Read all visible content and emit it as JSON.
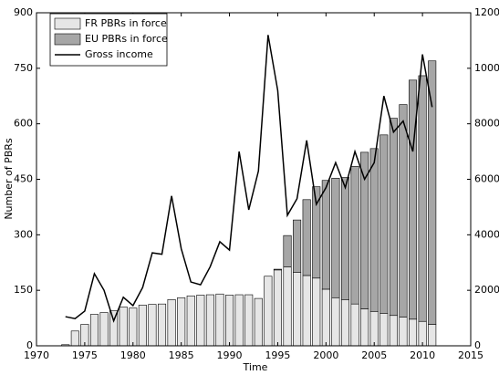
{
  "chart_data": {
    "type": "bar",
    "x_label": "Time",
    "y_label": "Number of PBRs",
    "x": [
      1973,
      1974,
      1975,
      1976,
      1977,
      1978,
      1979,
      1980,
      1981,
      1982,
      1983,
      1984,
      1985,
      1986,
      1987,
      1988,
      1989,
      1990,
      1991,
      1992,
      1993,
      1994,
      1995,
      1996,
      1997,
      1998,
      1999,
      2000,
      2001,
      2002,
      2003,
      2004,
      2005,
      2006,
      2007,
      2008,
      2009,
      2010,
      2011
    ],
    "series": [
      {
        "name": "FR PBRs in force",
        "type": "bar",
        "color": "#e6e6e6",
        "values": [
          3,
          40,
          58,
          85,
          90,
          95,
          105,
          102,
          110,
          112,
          113,
          125,
          130,
          135,
          137,
          138,
          140,
          137,
          138,
          138,
          128,
          188,
          205,
          213,
          198,
          190,
          183,
          153,
          130,
          125,
          113,
          100,
          93,
          88,
          82,
          78,
          72,
          66,
          58
        ]
      },
      {
        "name": "EU PBRs in force",
        "type": "bar",
        "color": "#a6a6a6",
        "values": [
          0,
          0,
          0,
          0,
          0,
          0,
          0,
          0,
          0,
          0,
          0,
          0,
          0,
          0,
          0,
          0,
          0,
          0,
          0,
          0,
          0,
          0,
          2,
          85,
          142,
          205,
          247,
          294,
          323,
          330,
          372,
          423,
          440,
          482,
          533,
          574,
          646,
          664,
          712
        ]
      },
      {
        "name": "Gross income",
        "type": "line",
        "axis": "y2",
        "color": "#000000",
        "values": [
          1050,
          980,
          1250,
          2600,
          2000,
          900,
          1750,
          1450,
          2100,
          3350,
          3300,
          5400,
          3500,
          2300,
          2200,
          2850,
          3750,
          3450,
          7000,
          4900,
          6300,
          11200,
          9200,
          4700,
          5300,
          7400,
          5100,
          5700,
          6600,
          5700,
          7000,
          6000,
          6600,
          9000,
          7700,
          8100,
          7000,
          10500,
          8600
        ]
      }
    ],
    "xlim": [
      1970,
      2015
    ],
    "xticks": [
      1970,
      1975,
      1980,
      1985,
      1990,
      1995,
      2000,
      2005,
      2010,
      2015
    ],
    "ylim": [
      0,
      900
    ],
    "yticks": [
      0,
      150,
      300,
      450,
      600,
      750,
      900
    ],
    "y2lim": [
      0,
      12000
    ],
    "y2ticks": [
      0,
      2000,
      4000,
      6000,
      8000,
      10000,
      12000
    ],
    "legend": "upper left",
    "grid": false
  }
}
